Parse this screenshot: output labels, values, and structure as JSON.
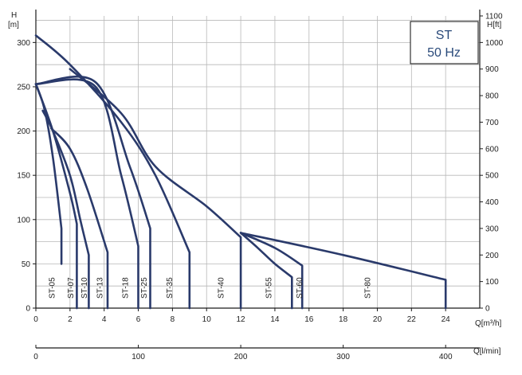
{
  "chart_data": {
    "type": "line",
    "title": "",
    "legend_box": {
      "line1": "ST",
      "line2": "50 Hz"
    },
    "axes": {
      "left": {
        "label_line1": "H",
        "label_line2": "[m]",
        "range": [
          0,
          330
        ],
        "ticks": [
          0,
          50,
          100,
          150,
          200,
          250,
          300
        ]
      },
      "right": {
        "label": "H[ft]",
        "range": [
          0,
          1100
        ],
        "ticks": [
          0,
          100,
          200,
          300,
          400,
          500,
          600,
          700,
          800,
          900,
          1000,
          1100
        ]
      },
      "bottom": {
        "label": "Q[m³/h]",
        "range": [
          0,
          26
        ],
        "ticks": [
          0,
          2,
          4,
          6,
          8,
          10,
          12,
          14,
          16,
          18,
          20,
          22,
          24
        ]
      },
      "bottom2": {
        "label": "Q[l/min]",
        "range": [
          0,
          433.3
        ],
        "ticks": [
          0,
          100,
          200,
          300,
          400
        ]
      }
    },
    "grid": true,
    "series": [
      {
        "name": "ST-05",
        "label_x": 0.9,
        "points": [
          [
            0,
            253
          ],
          [
            0.5,
            225
          ],
          [
            1,
            170
          ],
          [
            1.5,
            90
          ],
          [
            1.5,
            50
          ]
        ],
        "cutoff": [
          1.5,
          50
        ]
      },
      {
        "name": "ST-07",
        "label_x": 2.0,
        "points": [
          [
            0,
            253
          ],
          [
            1,
            200
          ],
          [
            2,
            130
          ],
          [
            2.4,
            95
          ],
          [
            2.4,
            0
          ]
        ],
        "cutoff": [
          2.4,
          0
        ]
      },
      {
        "name": "ST-10",
        "label_x": 2.8,
        "points": [
          [
            0.4,
            223
          ],
          [
            1,
            200
          ],
          [
            2,
            150
          ],
          [
            2.6,
            100
          ],
          [
            3.1,
            60
          ],
          [
            3.1,
            0
          ]
        ],
        "cutoff": [
          3.1,
          0
        ]
      },
      {
        "name": "ST-13",
        "label_x": 3.7,
        "points": [
          [
            0.9,
            203
          ],
          [
            2,
            180
          ],
          [
            3,
            135
          ],
          [
            4.2,
            63
          ],
          [
            4.2,
            0
          ]
        ],
        "cutoff": [
          4.2,
          0
        ]
      },
      {
        "name": "ST-18",
        "label_x": 5.2,
        "points": [
          [
            0,
            253
          ],
          [
            3.5,
            250
          ],
          [
            5,
            150
          ],
          [
            6,
            70
          ],
          [
            6,
            0
          ]
        ],
        "cutoff": [
          6,
          0
        ]
      },
      {
        "name": "ST-25",
        "label_x": 6.3,
        "points": [
          [
            0,
            253
          ],
          [
            3.5,
            255
          ],
          [
            5.5,
            160
          ],
          [
            6.7,
            90
          ],
          [
            6.7,
            0
          ]
        ],
        "cutoff": [
          6.7,
          0
        ]
      },
      {
        "name": "ST-35",
        "label_x": 7.8,
        "points": [
          [
            0,
            308
          ],
          [
            2,
            275
          ],
          [
            5,
            210
          ],
          [
            7,
            150
          ],
          [
            9,
            63
          ],
          [
            9,
            0
          ]
        ],
        "cutoff": [
          9,
          0
        ]
      },
      {
        "name": "ST-40",
        "label_x": 10.8,
        "points": [
          [
            2,
            270
          ],
          [
            5,
            220
          ],
          [
            7,
            160
          ],
          [
            10,
            115
          ],
          [
            12,
            80
          ],
          [
            12,
            0
          ]
        ],
        "cutoff": [
          12,
          0
        ]
      },
      {
        "name": "ST-55",
        "label_x": 13.6,
        "points": [
          [
            12,
            85
          ],
          [
            13,
            68
          ],
          [
            14,
            50
          ],
          [
            15,
            35
          ],
          [
            15,
            0
          ]
        ],
        "cutoff": [
          15,
          0
        ]
      },
      {
        "name": "ST-60",
        "label_x": 15.4,
        "points": [
          [
            12,
            85
          ],
          [
            14,
            68
          ],
          [
            15.6,
            48
          ],
          [
            15.6,
            0
          ]
        ],
        "cutoff": [
          15.6,
          0
        ]
      },
      {
        "name": "ST-80",
        "label_x": 19.4,
        "points": [
          [
            12,
            85
          ],
          [
            18,
            60
          ],
          [
            24,
            32
          ],
          [
            24,
            0
          ]
        ],
        "cutoff": [
          24,
          0
        ]
      }
    ]
  }
}
